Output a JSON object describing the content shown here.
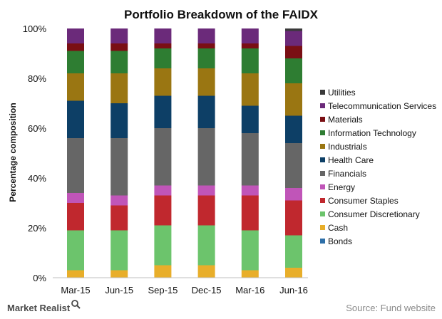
{
  "chart_data": {
    "type": "bar",
    "stacked": true,
    "title": "Portfolio Breakdown of the FAIDX",
    "ylabel": "Percentage composition",
    "xlabel": "",
    "ylim": [
      0,
      100
    ],
    "yticks": [
      "0%",
      "20%",
      "40%",
      "60%",
      "80%",
      "100%"
    ],
    "categories": [
      "Mar-15",
      "Jun-15",
      "Sep-15",
      "Dec-15",
      "Mar-16",
      "Jun-16"
    ],
    "legend_position": "right",
    "series": [
      {
        "name": "Bonds",
        "color": "#2e6fa8",
        "values": [
          0,
          0,
          0,
          0,
          0,
          0
        ]
      },
      {
        "name": "Cash",
        "color": "#e8ae2a",
        "values": [
          3,
          3,
          5,
          5,
          3,
          4
        ]
      },
      {
        "name": "Consumer Discretionary",
        "color": "#6cc46c",
        "values": [
          16,
          16,
          16,
          16,
          16,
          13
        ]
      },
      {
        "name": "Consumer Staples",
        "color": "#c0282e",
        "values": [
          11,
          10,
          12,
          12,
          14,
          14
        ]
      },
      {
        "name": "Energy",
        "color": "#c055b8",
        "values": [
          4,
          4,
          4,
          4,
          4,
          5
        ]
      },
      {
        "name": "Financials",
        "color": "#666666",
        "values": [
          22,
          23,
          23,
          23,
          21,
          18
        ]
      },
      {
        "name": "Health Care",
        "color": "#0d3f66",
        "values": [
          15,
          14,
          13,
          13,
          11,
          11
        ]
      },
      {
        "name": "Industrials",
        "color": "#9a7612",
        "values": [
          11,
          12,
          11,
          11,
          13,
          13
        ]
      },
      {
        "name": "Information Technology",
        "color": "#2e7d32",
        "values": [
          9,
          9,
          8,
          8,
          10,
          10
        ]
      },
      {
        "name": "Materials",
        "color": "#7a0f14",
        "values": [
          3,
          3,
          2,
          2,
          2,
          5
        ]
      },
      {
        "name": "Telecommunication Services",
        "color": "#6b2a7a",
        "values": [
          6,
          6,
          6,
          6,
          6,
          6
        ]
      },
      {
        "name": "Utilities",
        "color": "#3a3a3a",
        "values": [
          0,
          0,
          0,
          0,
          0,
          1
        ]
      }
    ]
  },
  "brand": "Market Realist",
  "source": "Source: Fund website"
}
